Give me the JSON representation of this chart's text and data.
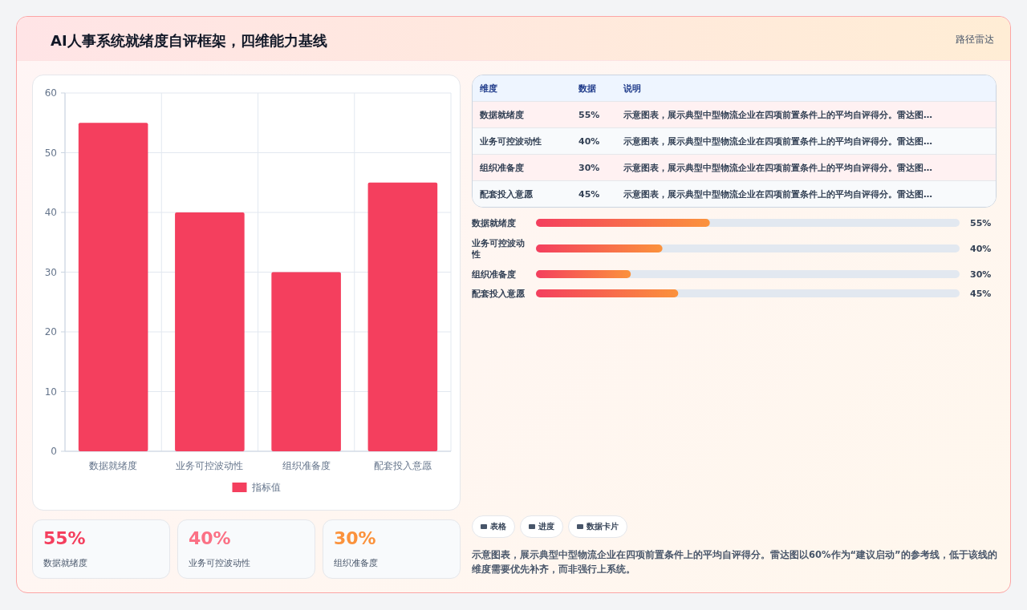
{
  "chart_data": [
    {
      "type": "bar",
      "title": "AI人事系统就绪度自评框架，四维能力基线",
      "annotations": [
        "路径雷达"
      ],
      "categories": [
        "数据就绪度",
        "业务可控波动性",
        "组织准备度",
        "配套投入意愿"
      ],
      "series": [
        {
          "name": "指标值",
          "color": "#f43f5e",
          "values": [
            55,
            40,
            30,
            45
          ]
        }
      ],
      "ylim": [
        0,
        60
      ],
      "yticks": [
        0,
        10,
        20,
        30,
        40,
        50,
        60
      ],
      "grid": true,
      "legend": "bottom"
    },
    {
      "type": "other",
      "categories": [
        "维度",
        "数据",
        "说明"
      ],
      "y_categories": [
        "数据就绪度",
        "业务可控波动性",
        "组织准备度",
        "配套投入意愿"
      ],
      "cell_labels": [
        [
          "55%",
          "示意图表，展示典型中型物流企业在四项前置条件上的平均自评得分。雷达图…"
        ],
        [
          "40%",
          "示意图表，展示典型中型物流企业在四项前置条件上的平均自评得分。雷达图…"
        ],
        [
          "30%",
          "示意图表，展示典型中型物流企业在四项前置条件上的平均自评得分。雷达图…"
        ],
        [
          "45%",
          "示意图表，展示典型中型物流企业在四项前置条件上的平均自评得分。雷达图…"
        ]
      ]
    },
    {
      "type": "bar",
      "orientation": "horizontal",
      "categories": [
        "数据就绪度",
        "业务可控波动性",
        "组织准备度",
        "配套投入意愿"
      ],
      "values": [
        55,
        40,
        30,
        45
      ],
      "value_labels": [
        "55%",
        "40%",
        "30%",
        "45%"
      ],
      "color": "#f43f5e",
      "xlim": [
        0,
        134
      ],
      "tick_labels": "y"
    },
    {
      "type": "other",
      "categories": [
        "数据就绪度",
        "业务可控波动性",
        "组织准备度"
      ],
      "value_labels": [
        "55%",
        "40%",
        "30%"
      ]
    },
    {
      "type": "other",
      "categories": [
        "表格",
        "进度",
        "数据卡片"
      ],
      "annotations": [
        "示意图表，展示典型中型物流企业在四项前置条件上的平均自评得分。雷达图以60%作为“建议启动”的参考线，低于该线的维度需要优先补齐，而非强行上系统。"
      ]
    }
  ]
}
